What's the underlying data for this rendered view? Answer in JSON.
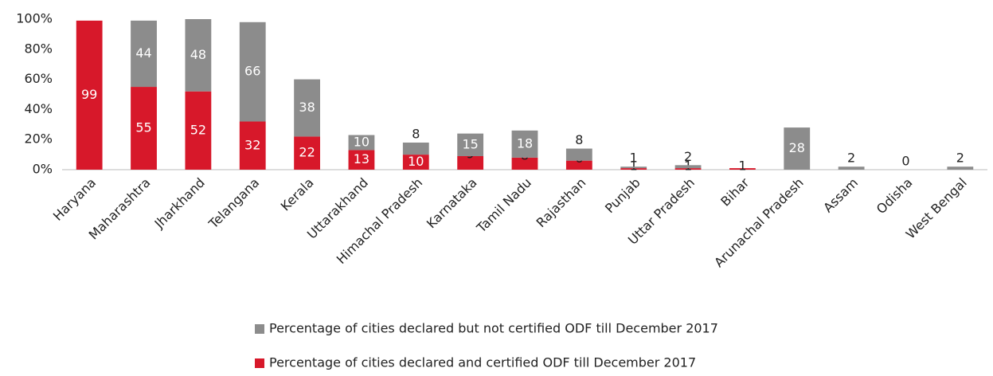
{
  "chart_data": {
    "type": "stacked_bar",
    "categories": [
      "Haryana",
      "Maharashtra",
      "Jharkhand",
      "Telangana",
      "Kerala",
      "Uttarakhand",
      "Himachal Pradesh",
      "Karnataka",
      "Tamil Nadu",
      "Rajasthan",
      "Punjab",
      "Uttar Pradesh",
      "Bihar",
      "Arunachal Pradesh",
      "Assam",
      "Odisha",
      "West Bengal"
    ],
    "series": [
      {
        "name": "Percentage of cities declared and certified ODF till December 2017",
        "color": "#d7182a",
        "values": [
          99,
          55,
          52,
          32,
          22,
          13,
          10,
          9,
          8,
          6,
          1,
          1,
          1,
          null,
          null,
          null,
          null
        ]
      },
      {
        "name": "Percentage of cities declared but not certified ODF till December 2017",
        "color": "#8c8c8c",
        "values": [
          null,
          44,
          48,
          66,
          38,
          10,
          8,
          15,
          18,
          8,
          1,
          2,
          null,
          28,
          2,
          0,
          2
        ]
      }
    ],
    "ylim": [
      0,
      100
    ],
    "yticks": [
      {
        "value": 0,
        "label": "0%"
      },
      {
        "value": 20,
        "label": "20%"
      },
      {
        "value": 40,
        "label": "40%"
      },
      {
        "value": 60,
        "label": "60%"
      },
      {
        "value": 80,
        "label": "80%"
      },
      {
        "value": 100,
        "label": "100%"
      }
    ],
    "legend": "bottom"
  }
}
